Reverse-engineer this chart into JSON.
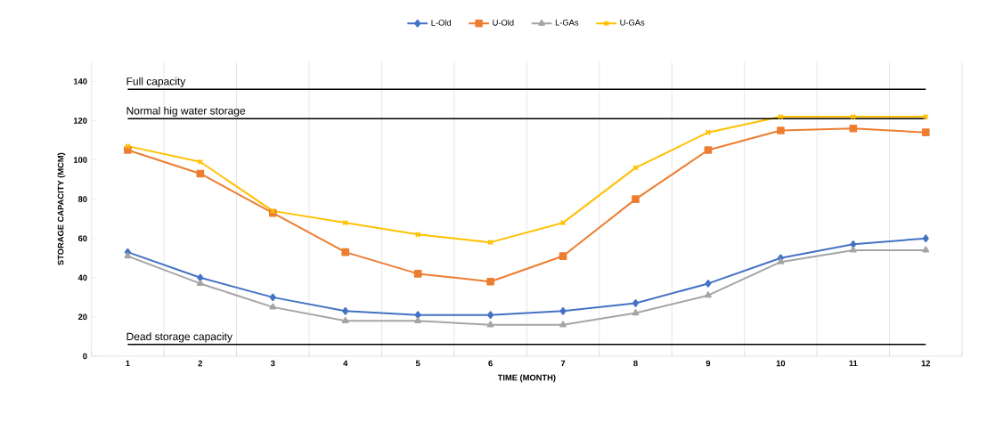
{
  "chart_data": {
    "type": "line",
    "xlabel": "TIME (MONTH)",
    "ylabel": "STORAGE CAPACITY (MCM)",
    "categories": [
      "1",
      "2",
      "3",
      "4",
      "5",
      "6",
      "7",
      "8",
      "9",
      "10",
      "11",
      "12"
    ],
    "series": [
      {
        "name": "L-Old",
        "color": "#4472c4",
        "marker": "diamond",
        "values": [
          53,
          40,
          30,
          23,
          21,
          21,
          23,
          27,
          37,
          50,
          57,
          60
        ]
      },
      {
        "name": "U-Old",
        "color": "#ed7d31",
        "marker": "square",
        "values": [
          105,
          93,
          73,
          53,
          42,
          38,
          51,
          80,
          105,
          115,
          116,
          114
        ]
      },
      {
        "name": "L-GAs",
        "color": "#a5a5a5",
        "marker": "triangle",
        "values": [
          51,
          37,
          25,
          18,
          18,
          16,
          16,
          22,
          31,
          48,
          54,
          54
        ]
      },
      {
        "name": "U-GAs",
        "color": "#ffc000",
        "marker": "cross",
        "values": [
          107,
          99,
          74,
          68,
          62,
          58,
          68,
          96,
          114,
          122,
          122,
          122
        ]
      }
    ],
    "ylim": [
      0,
      150
    ],
    "yticks": [
      0,
      20,
      40,
      60,
      80,
      100,
      120,
      140
    ],
    "ref_lines": [
      {
        "axis": "y",
        "value": 136,
        "label": "Full capacity",
        "color": "#000000"
      },
      {
        "axis": "y",
        "value": 121,
        "label": "Normal hig water storage",
        "color": "#000000"
      },
      {
        "axis": "y",
        "value": 6,
        "label": "Dead storage capacity",
        "color": "#000000"
      }
    ],
    "grid": "x",
    "legend": "top",
    "line_style": "solid"
  }
}
